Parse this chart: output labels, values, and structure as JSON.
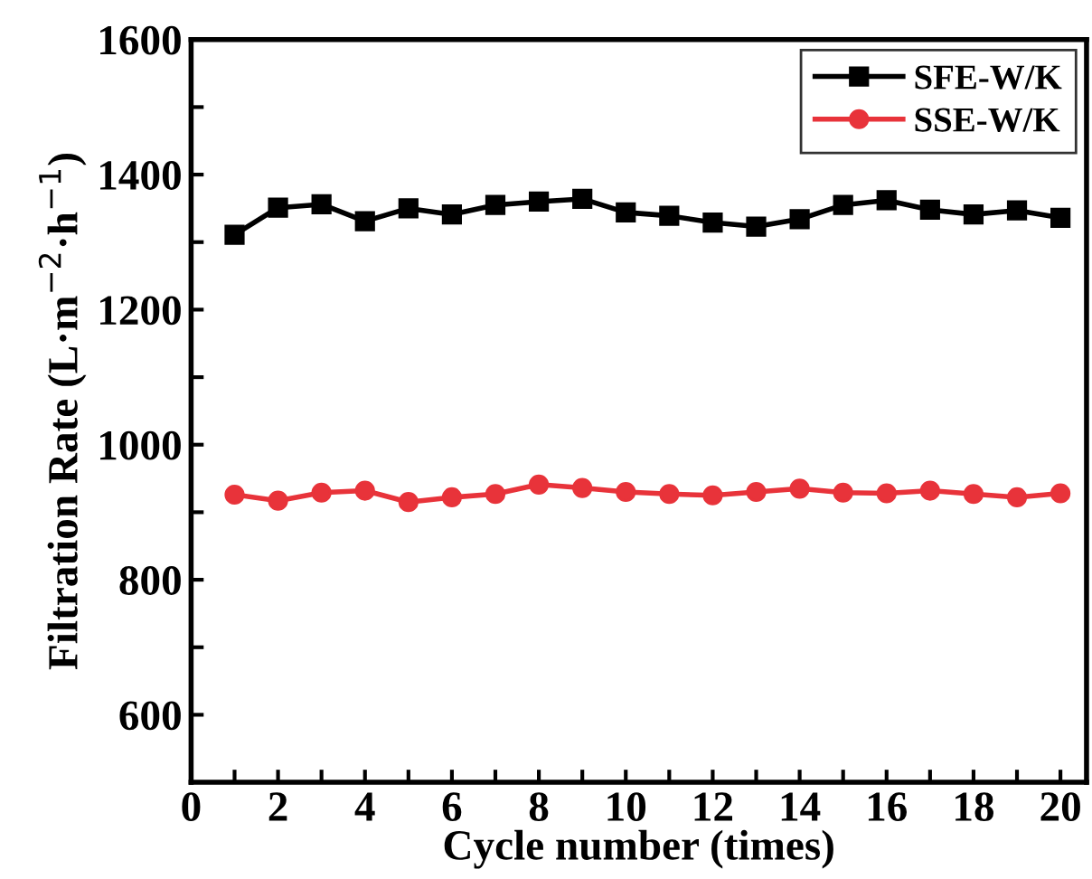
{
  "chart_data": {
    "type": "line",
    "xlabel": "Cycle number (times)",
    "ylabel": "Filtration Rate (L·m$^{−2}$·h$^{−1}$)",
    "x": [
      1,
      2,
      3,
      4,
      5,
      6,
      7,
      8,
      9,
      10,
      11,
      12,
      13,
      14,
      15,
      16,
      17,
      18,
      19,
      20
    ],
    "series": [
      {
        "name": "SFE-W/K",
        "color": "#000000",
        "marker": "square",
        "values": [
          1311,
          1351,
          1356,
          1331,
          1350,
          1341,
          1355,
          1360,
          1364,
          1344,
          1339,
          1329,
          1323,
          1334,
          1355,
          1362,
          1348,
          1341,
          1347,
          1336
        ]
      },
      {
        "name": "SSE-W/K",
        "color": "#e8333a",
        "marker": "circle",
        "values": [
          926,
          917,
          929,
          932,
          915,
          922,
          927,
          941,
          936,
          930,
          927,
          925,
          930,
          935,
          929,
          928,
          932,
          927,
          922,
          928
        ]
      }
    ],
    "xlim": [
      0,
      20.6
    ],
    "ylim": [
      500,
      1600
    ],
    "xticks": [
      0,
      {
        "value": 1,
        "label": null
      },
      2,
      {
        "value": 3,
        "label": null
      },
      4,
      {
        "value": 5,
        "label": null
      },
      6,
      {
        "value": 7,
        "label": null
      },
      8,
      {
        "value": 9,
        "label": null
      },
      10,
      {
        "value": 11,
        "label": null
      },
      12,
      {
        "value": 13,
        "label": null
      },
      14,
      {
        "value": 15,
        "label": null
      },
      16,
      {
        "value": 17,
        "label": null
      },
      18,
      {
        "value": 19,
        "label": null
      },
      20
    ],
    "yticks": [
      600,
      {
        "value": 700,
        "label": null
      },
      800,
      {
        "value": 900,
        "label": null
      },
      1000,
      {
        "value": 1100,
        "label": null
      },
      1200,
      {
        "value": 1300,
        "label": null
      },
      1400,
      {
        "value": 1500,
        "label": null
      },
      1600
    ],
    "grid": false,
    "legend": "top right",
    "line_style": "solid"
  }
}
